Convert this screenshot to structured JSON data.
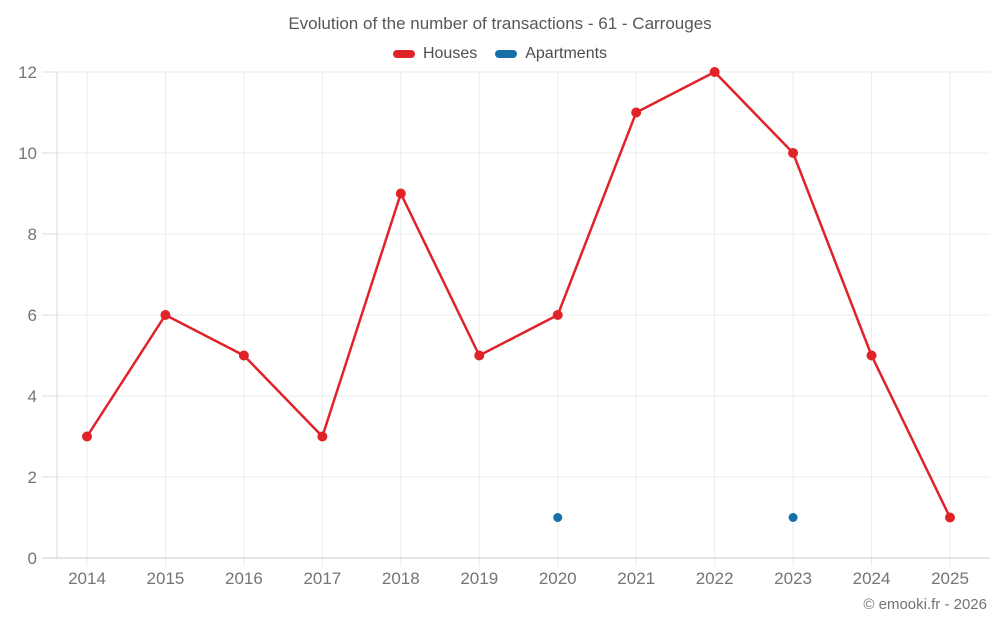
{
  "page": {
    "background": "#ffffff"
  },
  "chart_data": {
    "type": "line",
    "title": "Evolution of the number of transactions - 61 - Carrouges",
    "categories": [
      "2014",
      "2015",
      "2016",
      "2017",
      "2018",
      "2019",
      "2020",
      "2021",
      "2022",
      "2023",
      "2024",
      "2025"
    ],
    "series": [
      {
        "name": "Houses",
        "color": "#e02328",
        "values": [
          3,
          6,
          5,
          3,
          9,
          5,
          6,
          11,
          12,
          10,
          5,
          1
        ]
      },
      {
        "name": "Apartments",
        "color": "#156fa8",
        "values": [
          null,
          null,
          null,
          null,
          null,
          null,
          1,
          null,
          null,
          1,
          null,
          null
        ]
      }
    ],
    "xlabel": "",
    "ylabel": "",
    "ylim": [
      0,
      12
    ],
    "yticks": [
      0,
      2,
      4,
      6,
      8,
      10,
      12
    ],
    "grid": true,
    "legend_position": "top",
    "axis_text_color": "#757575",
    "gridline_color": "#ebebeb",
    "axis_line_color": "#cccccc"
  },
  "footer": {
    "credit": "© emooki.fr - 2026"
  }
}
